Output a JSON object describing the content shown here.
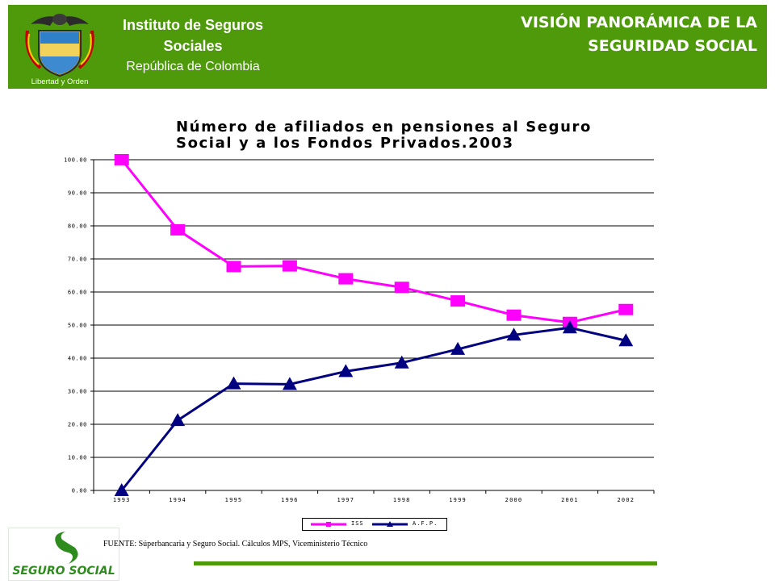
{
  "header": {
    "institution_line1": "Instituto de Seguros",
    "institution_line2": "Sociales",
    "republic": "República de Colombia",
    "crest_motto": "Libertad y Orden",
    "title_line1": "VISIÓN PANORÁMICA DE LA",
    "title_line2": "SEGURIDAD SOCIAL"
  },
  "chart_data": {
    "type": "line",
    "title_line1": "Número de afiliados en pensiones al Seguro",
    "title_line2": "Social y a los Fondos Privados.2003",
    "xlabel": "",
    "ylabel": "",
    "x": [
      "1993",
      "1994",
      "1995",
      "1996",
      "1997",
      "1998",
      "1999",
      "2000",
      "2001",
      "2002"
    ],
    "ylim": [
      0,
      100
    ],
    "yticks": [
      "0.00",
      "10.00",
      "20.00",
      "30.00",
      "40.00",
      "50.00",
      "60.00",
      "70.00",
      "80.00",
      "90.00",
      "100.00"
    ],
    "grid": true,
    "legend_position": "bottom",
    "series": [
      {
        "name": "ISS",
        "marker": "square",
        "color": "#ff00ff",
        "values": [
          100.0,
          78.8,
          67.7,
          67.9,
          64.0,
          61.4,
          57.3,
          53.0,
          50.8,
          54.7
        ]
      },
      {
        "name": "A.F.P.",
        "marker": "triangle",
        "color": "#000080",
        "values": [
          0.0,
          21.2,
          32.3,
          32.1,
          36.0,
          38.6,
          42.7,
          47.0,
          49.2,
          45.3
        ]
      }
    ]
  },
  "footer": {
    "source": "FUENTE: Súperbancaria y Seguro Social. Cálculos MPS, Viceministerio  Técnico",
    "logo_text": "SEGURO SOCIAL"
  }
}
